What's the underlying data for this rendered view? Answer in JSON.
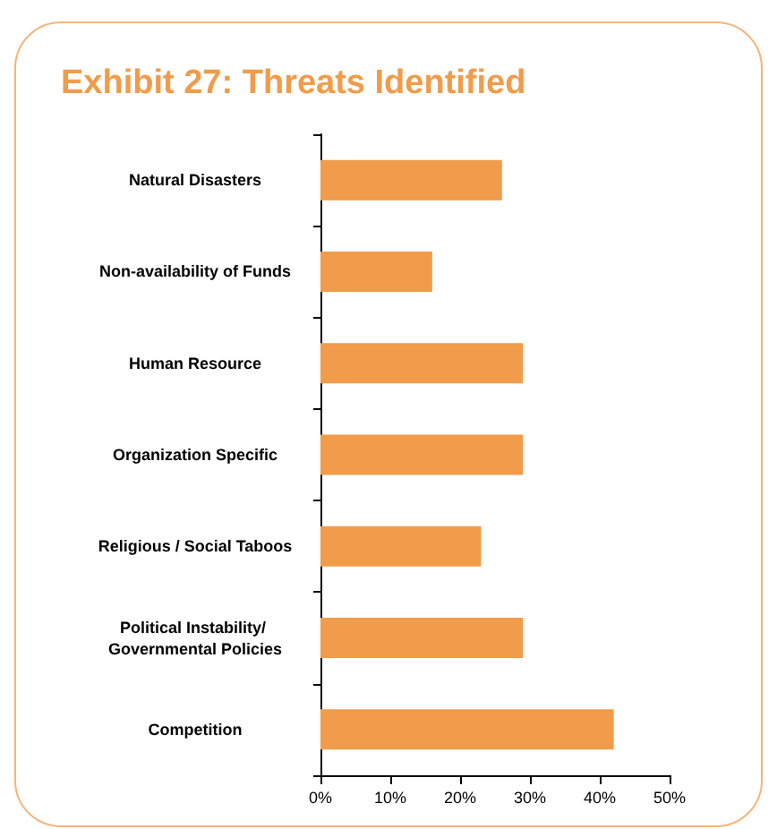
{
  "chart_data": {
    "type": "bar",
    "orientation": "horizontal",
    "title": "Exhibit 27: Threats Identified",
    "categories": [
      "Natural Disasters",
      "Non-availability of Funds",
      "Human Resource",
      "Organization Specific",
      "Religious / Social Taboos",
      "Political Instability/ Governmental Policies",
      "Competition"
    ],
    "values": [
      26,
      16,
      29,
      29,
      23,
      29,
      42
    ],
    "color": "#f09c4a",
    "xlim": [
      0,
      50
    ],
    "xticks": [
      {
        "value": 0,
        "label": "0%"
      },
      {
        "value": 10,
        "label": "10%"
      },
      {
        "value": 20,
        "label": "20%"
      },
      {
        "value": 30,
        "label": "30%"
      },
      {
        "value": 40,
        "label": "40%"
      },
      {
        "value": 50,
        "label": "50%"
      }
    ],
    "data_labels": false
  }
}
